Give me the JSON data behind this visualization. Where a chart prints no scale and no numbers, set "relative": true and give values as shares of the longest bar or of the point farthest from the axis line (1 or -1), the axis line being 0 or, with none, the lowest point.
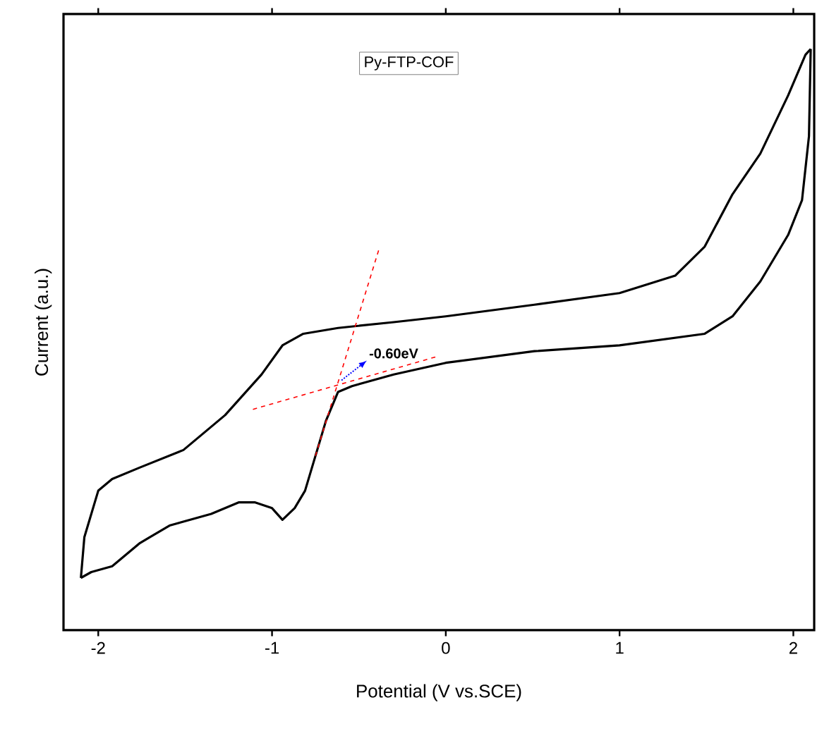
{
  "chart_data": {
    "type": "line",
    "xlabel": "Potential (V vs.SCE)",
    "ylabel": "Current (a.u.)",
    "relative": true,
    "tick_labels": "x",
    "grid": false,
    "xlim": [
      -2.2,
      2.12
    ],
    "xticks": [
      -2,
      -1,
      0,
      1,
      2
    ],
    "annotations": [
      "Py-FTP-COF",
      {
        "text": "-0.60eV",
        "x": -0.6,
        "y": 0.43
      }
    ],
    "series": [
      {
        "color": "#000000",
        "line_style": "solid",
        "x": [
          -2.1,
          -2.08,
          -2.0,
          -1.92,
          -1.76,
          -1.51,
          -1.27,
          -1.06,
          -0.94,
          -0.82,
          -0.62,
          -0.3,
          0,
          0.51,
          1.0,
          1.32,
          1.49,
          1.65,
          1.81,
          1.97,
          2.07,
          2.1
        ],
        "values": [
          0.09,
          0.16,
          0.24,
          0.26,
          0.28,
          0.31,
          0.37,
          0.44,
          0.49,
          0.51,
          0.52,
          0.53,
          0.54,
          0.56,
          0.58,
          0.61,
          0.66,
          0.75,
          0.82,
          0.92,
          0.99,
          1.0
        ]
      },
      {
        "color": "#000000",
        "line_style": "solid",
        "x": [
          -2.1,
          -2.04,
          -1.92,
          -1.76,
          -1.59,
          -1.35,
          -1.19,
          -1.1,
          -1.0,
          -0.94,
          -0.87,
          -0.81,
          -0.75,
          -0.69,
          -0.62,
          -0.54,
          -0.3,
          0,
          0.51,
          1.0,
          1.49,
          1.65,
          1.81,
          1.97,
          2.05,
          2.09,
          2.1
        ],
        "values": [
          0.09,
          0.1,
          0.11,
          0.15,
          0.18,
          0.2,
          0.22,
          0.22,
          0.21,
          0.19,
          0.21,
          0.24,
          0.3,
          0.36,
          0.41,
          0.42,
          0.44,
          0.46,
          0.48,
          0.49,
          0.51,
          0.54,
          0.6,
          0.68,
          0.74,
          0.85,
          1.0
        ]
      },
      {
        "color": "#ff0000",
        "line_style": "dashed",
        "x": [
          -0.75,
          -0.38
        ],
        "values": [
          0.3,
          0.66
        ]
      },
      {
        "color": "#ff0000",
        "line_style": "dashed",
        "x": [
          -1.11,
          -0.06
        ],
        "values": [
          0.38,
          0.47
        ]
      }
    ]
  }
}
